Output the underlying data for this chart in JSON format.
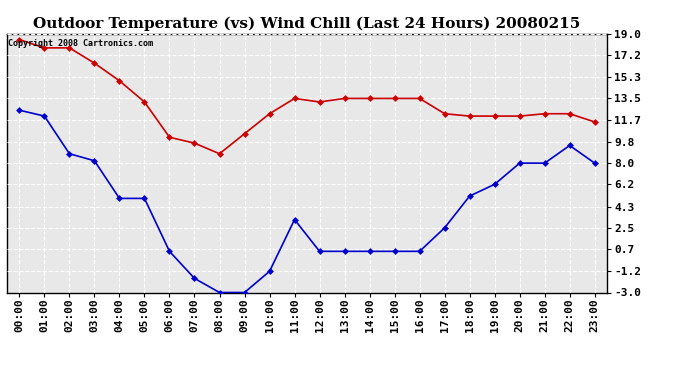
{
  "title": "Outdoor Temperature (vs) Wind Chill (Last 24 Hours) 20080215",
  "copyright_text": "Copyright 2008 Cartronics.com",
  "hours": [
    "00:00",
    "01:00",
    "02:00",
    "03:00",
    "04:00",
    "05:00",
    "06:00",
    "07:00",
    "08:00",
    "09:00",
    "10:00",
    "11:00",
    "12:00",
    "13:00",
    "14:00",
    "15:00",
    "16:00",
    "17:00",
    "18:00",
    "19:00",
    "20:00",
    "21:00",
    "22:00",
    "23:00"
  ],
  "temp": [
    18.5,
    17.8,
    17.8,
    16.5,
    15.0,
    13.2,
    10.2,
    9.7,
    8.8,
    10.5,
    12.2,
    13.5,
    13.2,
    13.5,
    13.5,
    13.5,
    13.5,
    12.2,
    12.0,
    12.0,
    12.0,
    12.2,
    12.2,
    11.5
  ],
  "wind_chill": [
    12.5,
    12.0,
    8.8,
    8.2,
    5.0,
    5.0,
    0.5,
    -1.8,
    -3.0,
    -3.0,
    -1.2,
    3.2,
    0.5,
    0.5,
    0.5,
    0.5,
    0.5,
    2.5,
    5.2,
    6.2,
    8.0,
    8.0,
    9.5,
    8.0
  ],
  "temp_color": "#cc0000",
  "wind_chill_color": "#0000cc",
  "marker": "D",
  "marker_size": 3,
  "line_width": 1.2,
  "ylim": [
    -3.0,
    19.0
  ],
  "yticks": [
    -3.0,
    -1.2,
    0.7,
    2.5,
    4.3,
    6.2,
    8.0,
    9.8,
    11.7,
    13.5,
    15.3,
    17.2,
    19.0
  ],
  "background_color": "#ffffff",
  "plot_bg_color": "#e8e8e8",
  "grid_color": "#ffffff",
  "title_fontsize": 11,
  "tick_fontsize": 8,
  "copyright_fontsize": 6
}
